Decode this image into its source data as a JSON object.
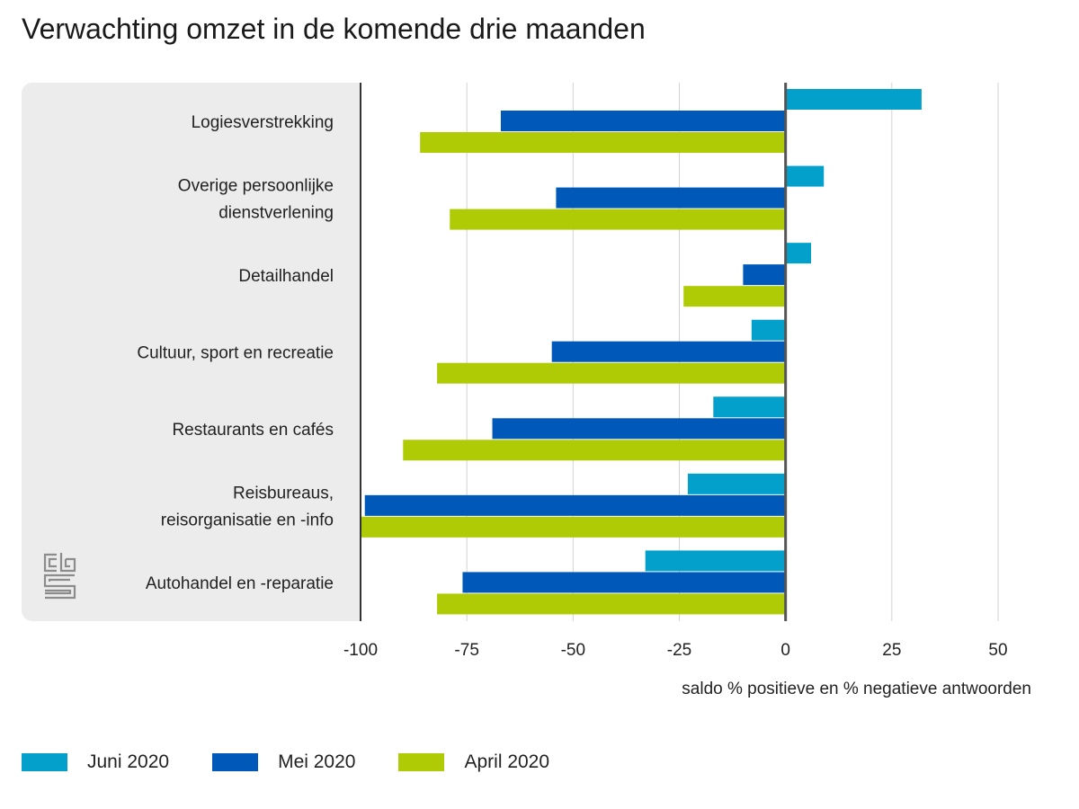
{
  "chart_data": {
    "type": "bar",
    "orientation": "horizontal",
    "title": "Verwachting omzet in de komende drie maanden",
    "xlabel": "saldo % positieve en % negatieve antwoorden",
    "ylabel": "",
    "xlim": [
      -100,
      50
    ],
    "xticks": [
      -100,
      -75,
      -50,
      -25,
      0,
      25,
      50
    ],
    "grid": true,
    "legend_position": "bottom-left",
    "categories": [
      [
        "Logiesverstrekking"
      ],
      [
        "Overige persoonlijke",
        "dienstverlening"
      ],
      [
        "Detailhandel"
      ],
      [
        "Cultuur, sport en recreatie"
      ],
      [
        "Restaurants en cafés"
      ],
      [
        "Reisbureaus,",
        "reisorganisatie en -info"
      ],
      [
        "Autohandel en -reparatie"
      ]
    ],
    "series": [
      {
        "name": "Juni 2020",
        "color": "#04a0cc",
        "values": [
          32,
          9,
          6,
          -8,
          -17,
          -23,
          -33
        ]
      },
      {
        "name": "Mei 2020",
        "color": "#0058b8",
        "values": [
          -67,
          -54,
          -10,
          -55,
          -69,
          -99,
          -76
        ]
      },
      {
        "name": "April 2020",
        "color": "#afcb05",
        "values": [
          -86,
          -79,
          -24,
          -82,
          -90,
          -100,
          -82
        ]
      }
    ]
  },
  "logo_icon": "cbs-logo-icon"
}
